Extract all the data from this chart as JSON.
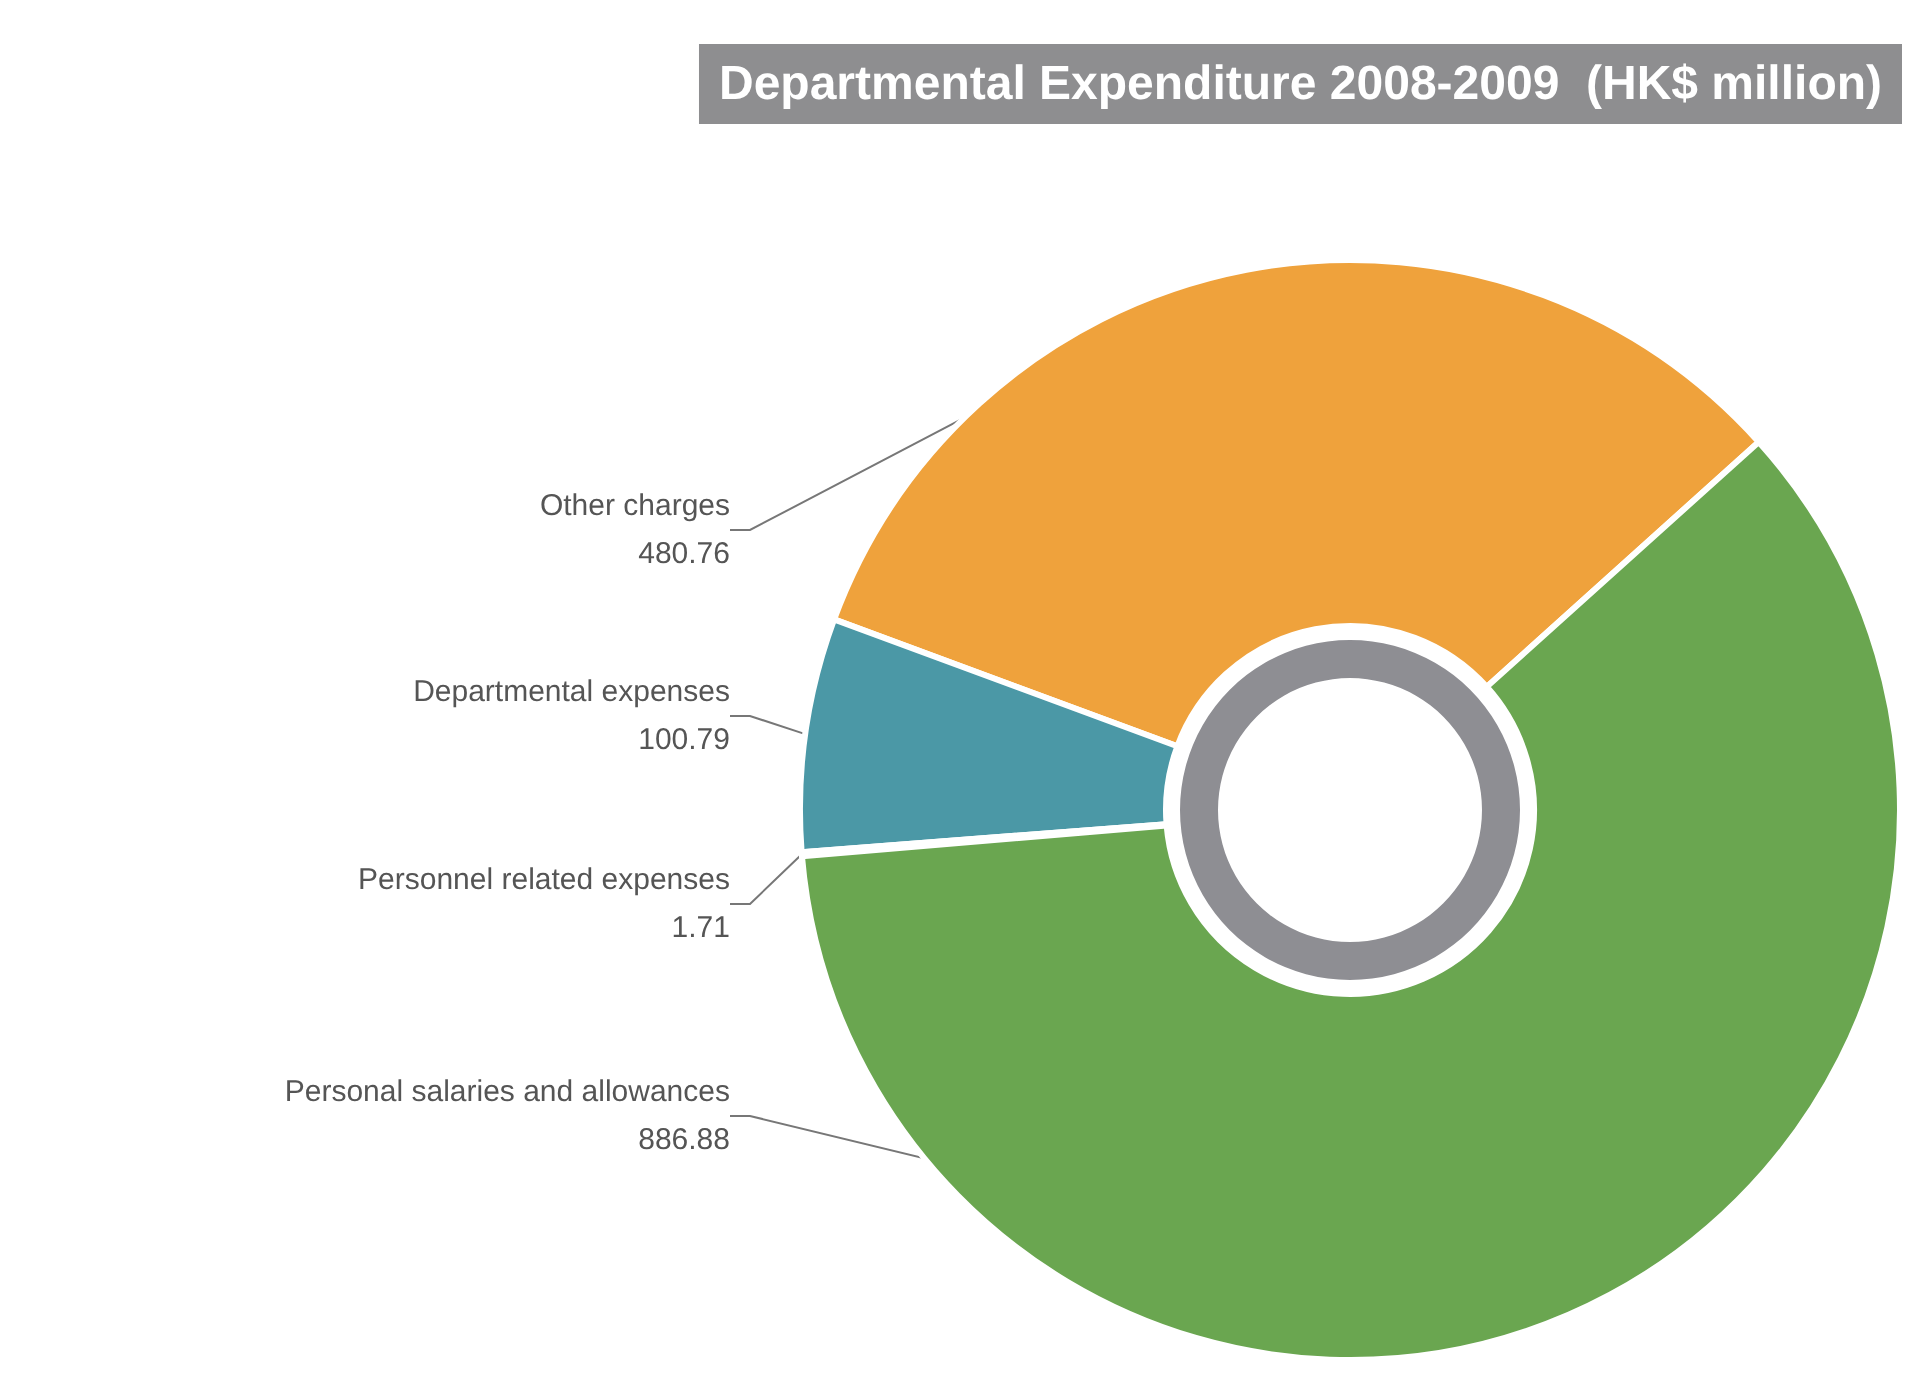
{
  "chart_data": {
    "type": "donut",
    "title": "Departmental Expenditure 2008-2009  (HK$ million)",
    "categories": [
      "Other charges",
      "Departmental expenses",
      "Personnel related expenses",
      "Personal salaries and allowances"
    ],
    "values": [
      480.76,
      100.79,
      1.71,
      886.88
    ],
    "colors": [
      "#efa23c",
      "#4b98a6",
      "#5aa8cc",
      "#6aa650"
    ],
    "data_labels": true,
    "legend": false
  }
}
